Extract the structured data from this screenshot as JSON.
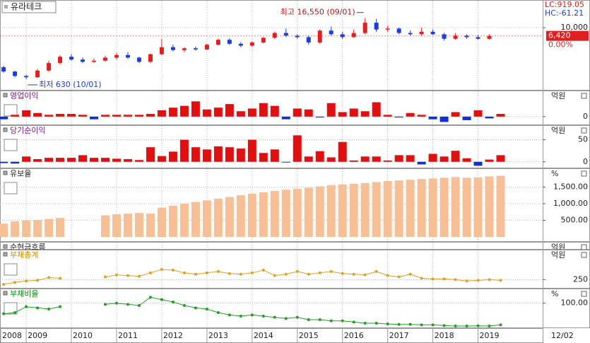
{
  "x_axis": {
    "xlim": [
      2008.42,
      2020.43
    ],
    "xticks": [
      2008,
      2009,
      2010,
      2011,
      2012,
      2013,
      2014,
      2015,
      2016,
      2017,
      2018,
      2019
    ],
    "end_label": "12/02"
  },
  "chart_data": [
    {
      "type": "candlestick",
      "title": "유라테크",
      "log_scale": true,
      "up_color": "#e02020",
      "down_color": "#1a3fd8",
      "indicators": [
        {
          "text": "LC:919.05",
          "color": "#e02020"
        },
        {
          "text": "HC:-61.21",
          "color": "#1a3fd8"
        }
      ],
      "annotations": [
        "최고 16,550 (09/01)",
        "최저 630 (10/01)"
      ],
      "last_price": {
        "value": 6420,
        "label": "6,420"
      },
      "change_label": "0.00%",
      "ylim": [
        400,
        30000
      ],
      "yticks": [
        {
          "value": 10000,
          "label": "10,000"
        }
      ],
      "x": [
        2008.5,
        2008.75,
        2009,
        2009.25,
        2009.5,
        2009.75,
        2010,
        2010.25,
        2010.5,
        2010.75,
        2011,
        2011.25,
        2011.5,
        2011.75,
        2012,
        2012.25,
        2012.5,
        2012.75,
        2013,
        2013.25,
        2013.5,
        2013.75,
        2014,
        2014.25,
        2014.5,
        2014.75,
        2015,
        2015.25,
        2015.5,
        2015.75,
        2016,
        2016.25,
        2016.5,
        2016.75,
        2017,
        2017.25,
        2017.5,
        2017.75,
        2018,
        2018.25,
        2018.5,
        2018.75,
        2019,
        2019.25
      ],
      "open": [
        1200,
        950,
        750,
        700,
        1000,
        1500,
        2100,
        1800,
        1600,
        1700,
        2000,
        2300,
        2000,
        1600,
        2400,
        3500,
        3000,
        3300,
        3100,
        4000,
        5200,
        4200,
        3800,
        4500,
        5800,
        7500,
        6500,
        6000,
        4500,
        8500,
        7000,
        6000,
        7500,
        13000,
        9000,
        9500,
        7500,
        7000,
        8000,
        7000,
        5500,
        6500,
        6000,
        5500
      ],
      "high": [
        1300,
        1000,
        800,
        1100,
        1700,
        2300,
        2400,
        2000,
        1900,
        2200,
        2600,
        2700,
        2100,
        2500,
        5500,
        4000,
        3500,
        3600,
        4200,
        5500,
        5600,
        4600,
        4800,
        6000,
        8000,
        9500,
        7000,
        6500,
        9000,
        10500,
        8000,
        9000,
        16550,
        16000,
        11000,
        10000,
        8500,
        10000,
        9000,
        7500,
        7500,
        7000,
        6800,
        7000
      ],
      "low": [
        900,
        700,
        630,
        680,
        950,
        1400,
        1700,
        1500,
        1500,
        1600,
        1800,
        1900,
        1500,
        1500,
        2300,
        2800,
        2700,
        2900,
        3000,
        3800,
        4000,
        3500,
        3600,
        4300,
        5500,
        6000,
        5500,
        4000,
        4200,
        6500,
        5500,
        5800,
        7000,
        8000,
        8000,
        7000,
        6500,
        6500,
        6800,
        5000,
        5200,
        5500,
        5200,
        5300
      ],
      "close": [
        950,
        750,
        700,
        1000,
        1500,
        2100,
        1800,
        1600,
        1700,
        2000,
        2300,
        2000,
        1600,
        2400,
        3500,
        3000,
        3300,
        3100,
        4000,
        5200,
        4200,
        3800,
        4500,
        5800,
        7500,
        6500,
        6000,
        4500,
        8500,
        7000,
        6000,
        7500,
        13000,
        9000,
        9500,
        7500,
        7000,
        8000,
        7000,
        5500,
        6500,
        6000,
        5500,
        6420
      ]
    },
    {
      "type": "bar",
      "title": "영업이익",
      "title_color": "#7a1a8a",
      "unit": "억원",
      "color": "#e01010",
      "negative_color": "#1030e0",
      "ylim": [
        -8,
        22
      ],
      "yticks": [
        0
      ],
      "x": [
        2008.5,
        2008.75,
        2009,
        2009.25,
        2009.5,
        2009.75,
        2010,
        2010.25,
        2010.5,
        2010.75,
        2011,
        2011.25,
        2011.5,
        2011.75,
        2012,
        2012.25,
        2012.5,
        2012.75,
        2013,
        2013.25,
        2013.5,
        2013.75,
        2014,
        2014.25,
        2014.5,
        2014.75,
        2015,
        2015.25,
        2015.5,
        2015.75,
        2016,
        2016.25,
        2016.5,
        2016.75,
        2017,
        2017.25,
        2017.5,
        2017.75,
        2018,
        2018.25,
        2018.5,
        2018.75,
        2019,
        2019.25,
        2019.5
      ],
      "values": [
        -3,
        2,
        7,
        4,
        2,
        3,
        3,
        2,
        -3,
        2,
        2,
        2,
        2,
        3,
        7,
        10,
        12,
        17,
        8,
        10,
        14,
        6,
        9,
        15,
        12,
        -3,
        9,
        8,
        -1,
        15,
        5,
        9,
        6,
        16,
        2,
        -1,
        4,
        2,
        -3,
        -6,
        5,
        -4,
        7,
        -2,
        3
      ]
    },
    {
      "type": "bar",
      "title": "당기순이익",
      "title_color": "#7a1a8a",
      "unit": "억원",
      "color": "#e01010",
      "negative_color": "#1030e0",
      "ylim": [
        -10,
        75
      ],
      "yticks": [
        50,
        0
      ],
      "x": [
        2008.5,
        2008.75,
        2009,
        2009.25,
        2009.5,
        2009.75,
        2010,
        2010.25,
        2010.5,
        2010.75,
        2011,
        2011.25,
        2011.5,
        2011.75,
        2012,
        2012.25,
        2012.5,
        2012.75,
        2013,
        2013.25,
        2013.5,
        2013.75,
        2014,
        2014.25,
        2014.5,
        2014.75,
        2015,
        2015.25,
        2015.5,
        2015.75,
        2016,
        2016.25,
        2016.5,
        2016.75,
        2017,
        2017.25,
        2017.5,
        2017.75,
        2018,
        2018.25,
        2018.5,
        2018.75,
        2019,
        2019.25,
        2019.5
      ],
      "values": [
        -3,
        -4,
        12,
        6,
        9,
        9,
        9,
        15,
        9,
        9,
        7,
        6,
        4,
        33,
        13,
        23,
        50,
        33,
        28,
        35,
        33,
        30,
        50,
        20,
        28,
        -1,
        60,
        12,
        24,
        10,
        45,
        3,
        12,
        12,
        3,
        15,
        15,
        -6,
        18,
        12,
        25,
        8,
        -9,
        5,
        15
      ]
    },
    {
      "type": "bar",
      "title": "유보율",
      "title_color": "#222222",
      "unit": "%",
      "color": "#f7bf95",
      "negative_color": "#f7bf95",
      "ylim": [
        0,
        2000
      ],
      "yticks": [
        {
          "value": 1500,
          "label": "1,500.00"
        },
        {
          "value": 1000,
          "label": "1,000.00"
        },
        {
          "value": 500,
          "label": "500.00"
        }
      ],
      "x": [
        2008.5,
        2008.75,
        2009,
        2009.25,
        2009.5,
        2009.75,
        2010,
        2010.25,
        2010.5,
        2010.75,
        2011,
        2011.25,
        2011.5,
        2011.75,
        2012,
        2012.25,
        2012.5,
        2012.75,
        2013,
        2013.25,
        2013.5,
        2013.75,
        2014,
        2014.25,
        2014.5,
        2014.75,
        2015,
        2015.25,
        2015.5,
        2015.75,
        2016,
        2016.25,
        2016.5,
        2016.75,
        2017,
        2017.25,
        2017.5,
        2017.75,
        2018,
        2018.25,
        2018.5,
        2018.75,
        2019,
        2019.25,
        2019.5
      ],
      "values": [
        400,
        470,
        490,
        510,
        540,
        570,
        null,
        null,
        null,
        650,
        680,
        700,
        720,
        700,
        880,
        940,
        1000,
        1050,
        1100,
        1150,
        1200,
        1250,
        1300,
        1340,
        1380,
        1420,
        1450,
        1480,
        1520,
        1560,
        1580,
        1600,
        1620,
        1650,
        1680,
        1700,
        1720,
        1740,
        1760,
        1780,
        1800,
        1780,
        1790,
        1820,
        1840
      ]
    },
    {
      "type": "empty",
      "title": "순현금흐름",
      "title_color": "#222222",
      "unit": "억원"
    },
    {
      "type": "line",
      "title": "부채총계",
      "title_color": "#d08a00",
      "unit": "억원",
      "color": "#e0a020",
      "ylim": [
        200,
        450
      ],
      "yticks": [
        250
      ],
      "x": [
        2008.5,
        2008.75,
        2009,
        2009.25,
        2009.5,
        2009.75,
        2010,
        2010.25,
        2010.5,
        2010.75,
        2011,
        2011.25,
        2011.5,
        2011.75,
        2012,
        2012.25,
        2012.5,
        2012.75,
        2013,
        2013.25,
        2013.5,
        2013.75,
        2014,
        2014.25,
        2014.5,
        2014.75,
        2015,
        2015.25,
        2015.5,
        2015.75,
        2016,
        2016.25,
        2016.5,
        2016.75,
        2017,
        2017.25,
        2017.5,
        2017.75,
        2018,
        2018.25,
        2018.5,
        2018.75,
        2019,
        2019.25,
        2019.5
      ],
      "values": [
        215,
        230,
        240,
        245,
        265,
        260,
        null,
        null,
        null,
        270,
        285,
        280,
        275,
        300,
        325,
        320,
        300,
        290,
        300,
        310,
        295,
        290,
        300,
        320,
        280,
        290,
        310,
        290,
        300,
        310,
        295,
        290,
        285,
        310,
        280,
        270,
        290,
        260,
        255,
        255,
        250,
        240,
        245,
        250,
        245
      ]
    },
    {
      "type": "line",
      "title": "부채비율",
      "title_color": "#108a10",
      "unit": "%",
      "color": "#20a020",
      "ylim": [
        0,
        150
      ],
      "yticks": [
        {
          "value": 100,
          "label": "100.00"
        }
      ],
      "x": [
        2008.5,
        2008.75,
        2009,
        2009.25,
        2009.5,
        2009.75,
        2010,
        2010.25,
        2010.5,
        2010.75,
        2011,
        2011.25,
        2011.5,
        2011.75,
        2012,
        2012.25,
        2012.5,
        2012.75,
        2013,
        2013.25,
        2013.5,
        2013.75,
        2014,
        2014.25,
        2014.5,
        2014.75,
        2015,
        2015.25,
        2015.5,
        2015.75,
        2016,
        2016.25,
        2016.5,
        2016.75,
        2017,
        2017.25,
        2017.5,
        2017.75,
        2018,
        2018.25,
        2018.5,
        2018.75,
        2019,
        2019.25,
        2019.5
      ],
      "values": [
        55,
        60,
        85,
        80,
        75,
        85,
        null,
        null,
        null,
        95,
        100,
        95,
        90,
        125,
        115,
        105,
        90,
        80,
        75,
        60,
        50,
        45,
        50,
        45,
        40,
        35,
        40,
        30,
        30,
        25,
        25,
        20,
        15,
        15,
        12,
        10,
        10,
        8,
        8,
        5,
        3,
        3,
        4,
        3,
        8
      ]
    }
  ]
}
